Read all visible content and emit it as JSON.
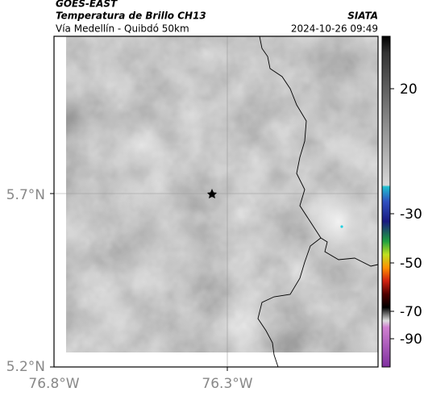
{
  "header": {
    "title": "GOES-EAST",
    "subtitle": "Temperatura de Brillo CH13",
    "source": "SIATA",
    "route": "Vía Medellín - Quibdó 50km",
    "timestamp": "2024-10-26 09:49"
  },
  "map": {
    "x_ticks": [
      "76.8°W",
      "76.3°W"
    ],
    "y_ticks": [
      "5.7°N",
      "5.2°N"
    ]
  },
  "colorbar": {
    "ticks": [
      "20",
      "-30",
      "-50",
      "-70",
      "-90"
    ]
  }
}
